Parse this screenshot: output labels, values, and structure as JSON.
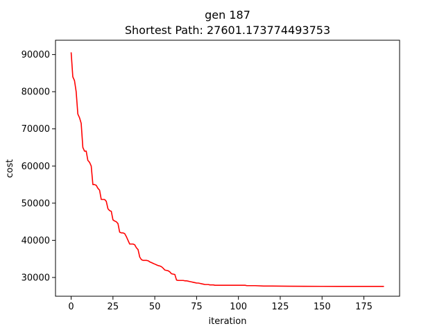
{
  "chart_data": {
    "type": "line",
    "title": "gen 187",
    "subtitle": "Shortest Path: 27601.173774493753",
    "xlabel": "iteration",
    "ylabel": "cost",
    "xlim": [
      -9.35,
      196.35
    ],
    "ylim": [
      24950,
      93850
    ],
    "xticks": [
      0,
      25,
      50,
      75,
      100,
      125,
      150,
      175
    ],
    "yticks": [
      30000,
      40000,
      50000,
      60000,
      70000,
      80000,
      90000
    ],
    "grid": false,
    "legend": "none",
    "series": [
      {
        "color": "#ff0000",
        "points": [
          [
            0,
            90600
          ],
          [
            1,
            84000
          ],
          [
            2,
            83000
          ],
          [
            3,
            80000
          ],
          [
            4,
            74000
          ],
          [
            5,
            73000
          ],
          [
            6,
            71500
          ],
          [
            7,
            65000
          ],
          [
            8,
            64000
          ],
          [
            9,
            64000
          ],
          [
            10,
            61500
          ],
          [
            11,
            61000
          ],
          [
            12,
            60000
          ],
          [
            13,
            55000
          ],
          [
            14,
            55000
          ],
          [
            15,
            54800
          ],
          [
            16,
            54000
          ],
          [
            17,
            53500
          ],
          [
            18,
            51000
          ],
          [
            19,
            51000
          ],
          [
            20,
            51000
          ],
          [
            21,
            50500
          ],
          [
            22,
            48500
          ],
          [
            23,
            48000
          ],
          [
            24,
            47800
          ],
          [
            25,
            45500
          ],
          [
            26,
            45200
          ],
          [
            27,
            45000
          ],
          [
            28,
            44500
          ],
          [
            29,
            42200
          ],
          [
            30,
            42000
          ],
          [
            31,
            42000
          ],
          [
            32,
            41800
          ],
          [
            33,
            41000
          ],
          [
            34,
            40000
          ],
          [
            35,
            39000
          ],
          [
            36,
            39000
          ],
          [
            37,
            39000
          ],
          [
            38,
            38800
          ],
          [
            39,
            38000
          ],
          [
            40,
            37500
          ],
          [
            41,
            35500
          ],
          [
            42,
            34800
          ],
          [
            43,
            34600
          ],
          [
            44,
            34600
          ],
          [
            45,
            34600
          ],
          [
            46,
            34500
          ],
          [
            47,
            34200
          ],
          [
            48,
            34000
          ],
          [
            49,
            33800
          ],
          [
            50,
            33600
          ],
          [
            51,
            33400
          ],
          [
            52,
            33200
          ],
          [
            53,
            33100
          ],
          [
            54,
            32900
          ],
          [
            55,
            32500
          ],
          [
            56,
            32000
          ],
          [
            57,
            31900
          ],
          [
            58,
            31800
          ],
          [
            59,
            31500
          ],
          [
            60,
            31000
          ],
          [
            61,
            30900
          ],
          [
            62,
            30800
          ],
          [
            63,
            29300
          ],
          [
            64,
            29200
          ],
          [
            65,
            29200
          ],
          [
            66,
            29200
          ],
          [
            67,
            29200
          ],
          [
            68,
            29100
          ],
          [
            69,
            29100
          ],
          [
            70,
            29000
          ],
          [
            71,
            28900
          ],
          [
            72,
            28800
          ],
          [
            73,
            28700
          ],
          [
            74,
            28600
          ],
          [
            75,
            28500
          ],
          [
            76,
            28500
          ],
          [
            77,
            28400
          ],
          [
            78,
            28300
          ],
          [
            79,
            28200
          ],
          [
            80,
            28100
          ],
          [
            81,
            28100
          ],
          [
            82,
            28100
          ],
          [
            83,
            28000
          ],
          [
            84,
            28000
          ],
          [
            85,
            28000
          ],
          [
            86,
            27900
          ],
          [
            87,
            27900
          ],
          [
            88,
            27900
          ],
          [
            90,
            27900
          ],
          [
            95,
            27900
          ],
          [
            100,
            27900
          ],
          [
            104,
            27900
          ],
          [
            105,
            27800
          ],
          [
            110,
            27800
          ],
          [
            115,
            27700
          ],
          [
            120,
            27700
          ],
          [
            130,
            27650
          ],
          [
            140,
            27620
          ],
          [
            150,
            27610
          ],
          [
            160,
            27605
          ],
          [
            170,
            27602
          ],
          [
            180,
            27601
          ],
          [
            187,
            27601
          ]
        ]
      }
    ]
  }
}
